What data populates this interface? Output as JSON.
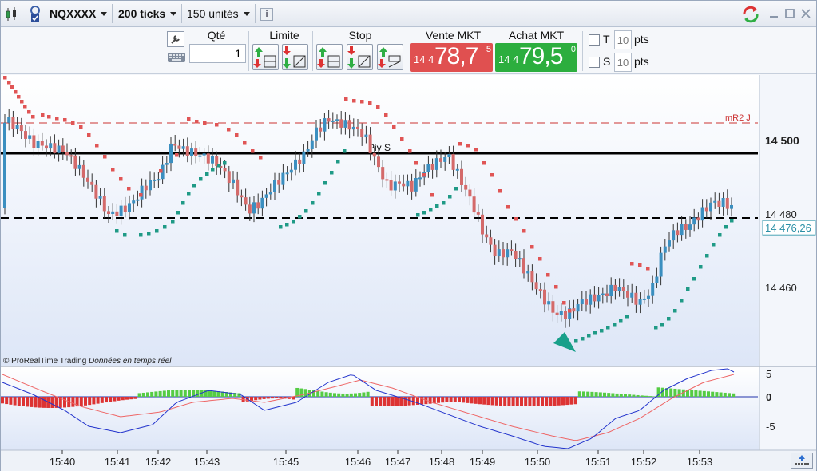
{
  "titlebar": {
    "symbol": "NQXXXX",
    "timeframe": "200 ticks",
    "units": "150 unités",
    "info_icon": "info-icon",
    "refresh_icon": "refresh-arrows-icon",
    "window_buttons": [
      "minimize-icon",
      "maximize-icon",
      "close-icon"
    ]
  },
  "toolbar": {
    "qty_label": "Qté",
    "qty_value": "1",
    "limite_label": "Limite",
    "stop_label": "Stop",
    "vente": {
      "label": "Vente MKT",
      "prefix": "14 4",
      "big": "78,7",
      "sup": "5",
      "color": "#e05050"
    },
    "achat": {
      "label": "Achat MKT",
      "prefix": "14 4",
      "big": "79,5",
      "sup": "0",
      "color": "#2cae3e"
    },
    "t_label": "T",
    "t_value": "10",
    "s_label": "S",
    "s_value": "10",
    "pts_label": "pts"
  },
  "chart": {
    "copyright": "© ProRealTime Trading",
    "realtime": "Données en temps réel",
    "pivot_label": "Piv S",
    "mr2_label": "mR2 J",
    "price_labels": [
      "14 500",
      "14 480",
      "14 460"
    ],
    "current_price": "14 476,26",
    "indicator_labels": [
      "5",
      "0",
      "-5"
    ],
    "time_labels": [
      "15:40",
      "15:41",
      "15:42",
      "15:43",
      "15:45",
      "15:46",
      "15:47",
      "15:48",
      "15:49",
      "15:50",
      "15:51",
      "15:52",
      "15:53"
    ],
    "colors": {
      "up": "#3b8fc0",
      "down": "#d46a6a",
      "sar_up": "#1f9a86",
      "sar_down": "#e05555",
      "hist_pos": "#55cc44",
      "hist_neg": "#dd3333",
      "macd": "#2233cc",
      "signal": "#ee6666"
    }
  },
  "chart_data": {
    "type": "candlestick",
    "y_axis_ticks": [
      14460,
      14480,
      14500
    ],
    "current_price": 14476.26,
    "pivot_level_s": 14498,
    "mr2_level": 14505,
    "indicator_axis_ticks": [
      -5,
      0,
      5
    ]
  }
}
